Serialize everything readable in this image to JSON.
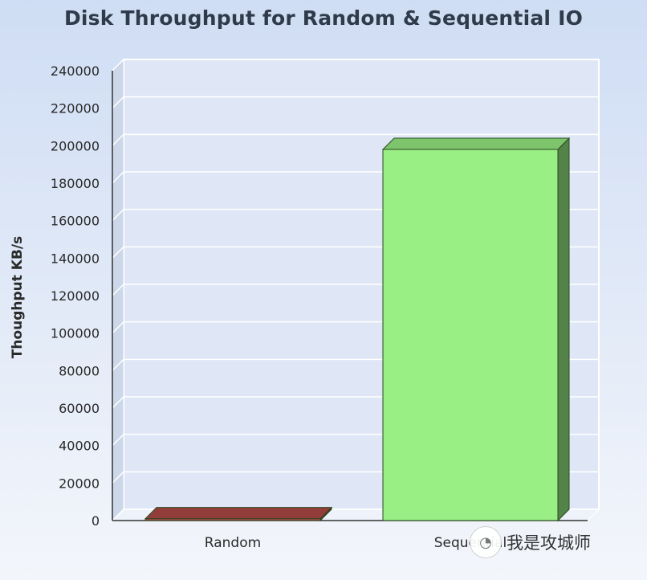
{
  "chart_data": {
    "type": "bar",
    "title": "Disk Throughput for Random & Sequential IO",
    "ylabel": "Thoughput KB/s",
    "xlabel": "",
    "categories": [
      "Random",
      "Sequential"
    ],
    "values": [
      1000,
      198000
    ],
    "ylim": [
      0,
      240000
    ],
    "yticks": [
      "0",
      "20000",
      "40000",
      "60000",
      "80000",
      "100000",
      "120000",
      "140000",
      "160000",
      "180000",
      "200000",
      "220000",
      "240000"
    ],
    "colors": [
      "#b24a46",
      "#99ef84"
    ],
    "grid": true,
    "style": "3d"
  },
  "watermark": {
    "text": "我是攻城师",
    "icon": "wechat-icon"
  }
}
